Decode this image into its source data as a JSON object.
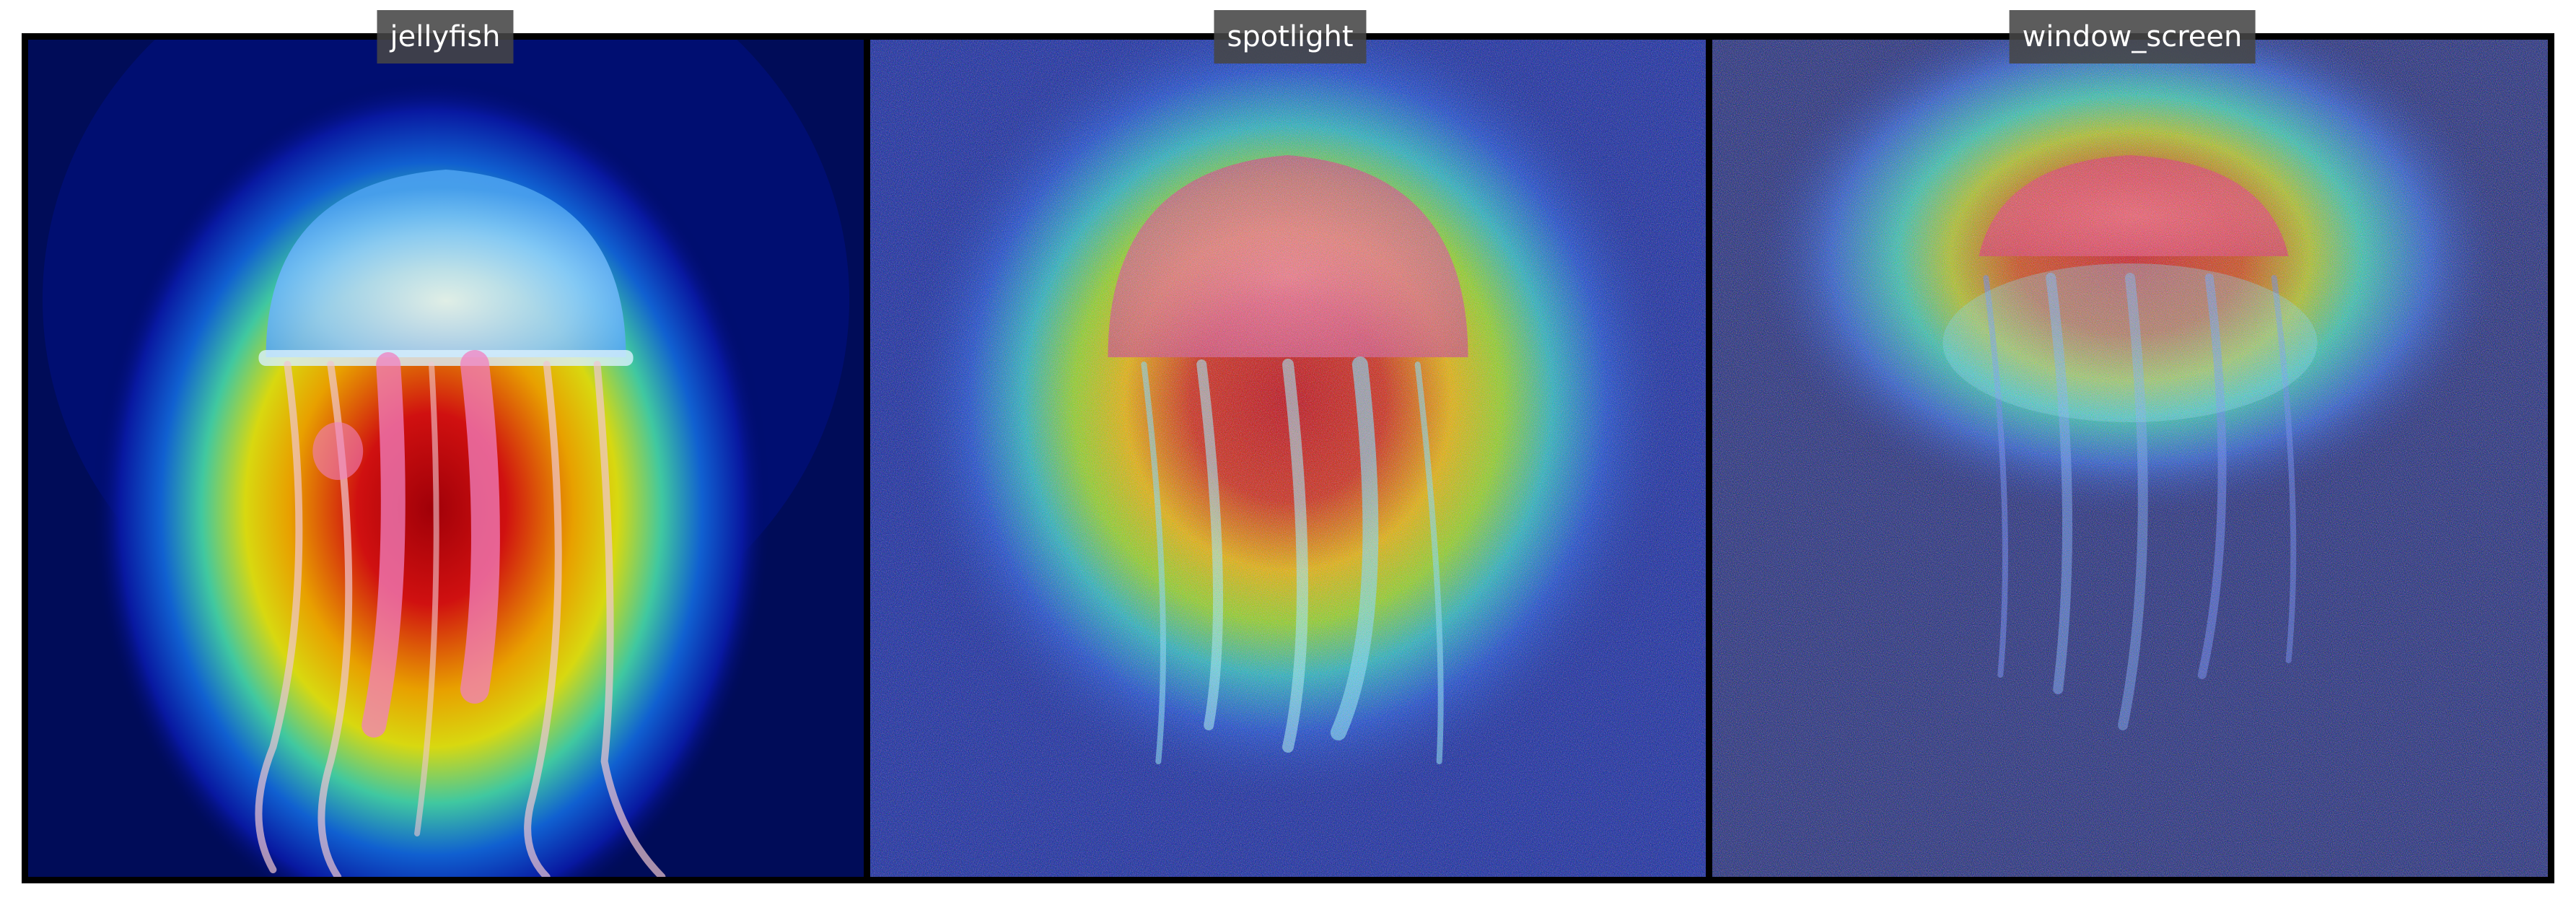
{
  "panels": [
    {
      "label": "jellyfish"
    },
    {
      "label": "spotlight"
    },
    {
      "label": "window_screen"
    }
  ],
  "colors": {
    "deep_blue": "#00105a",
    "heat_red": "#c00010",
    "heat_yellow": "#e8d000",
    "heat_cyan": "#20d0c0",
    "jelly_pink": "#e060b0",
    "bell_light_blue": "#9fd8ff"
  }
}
